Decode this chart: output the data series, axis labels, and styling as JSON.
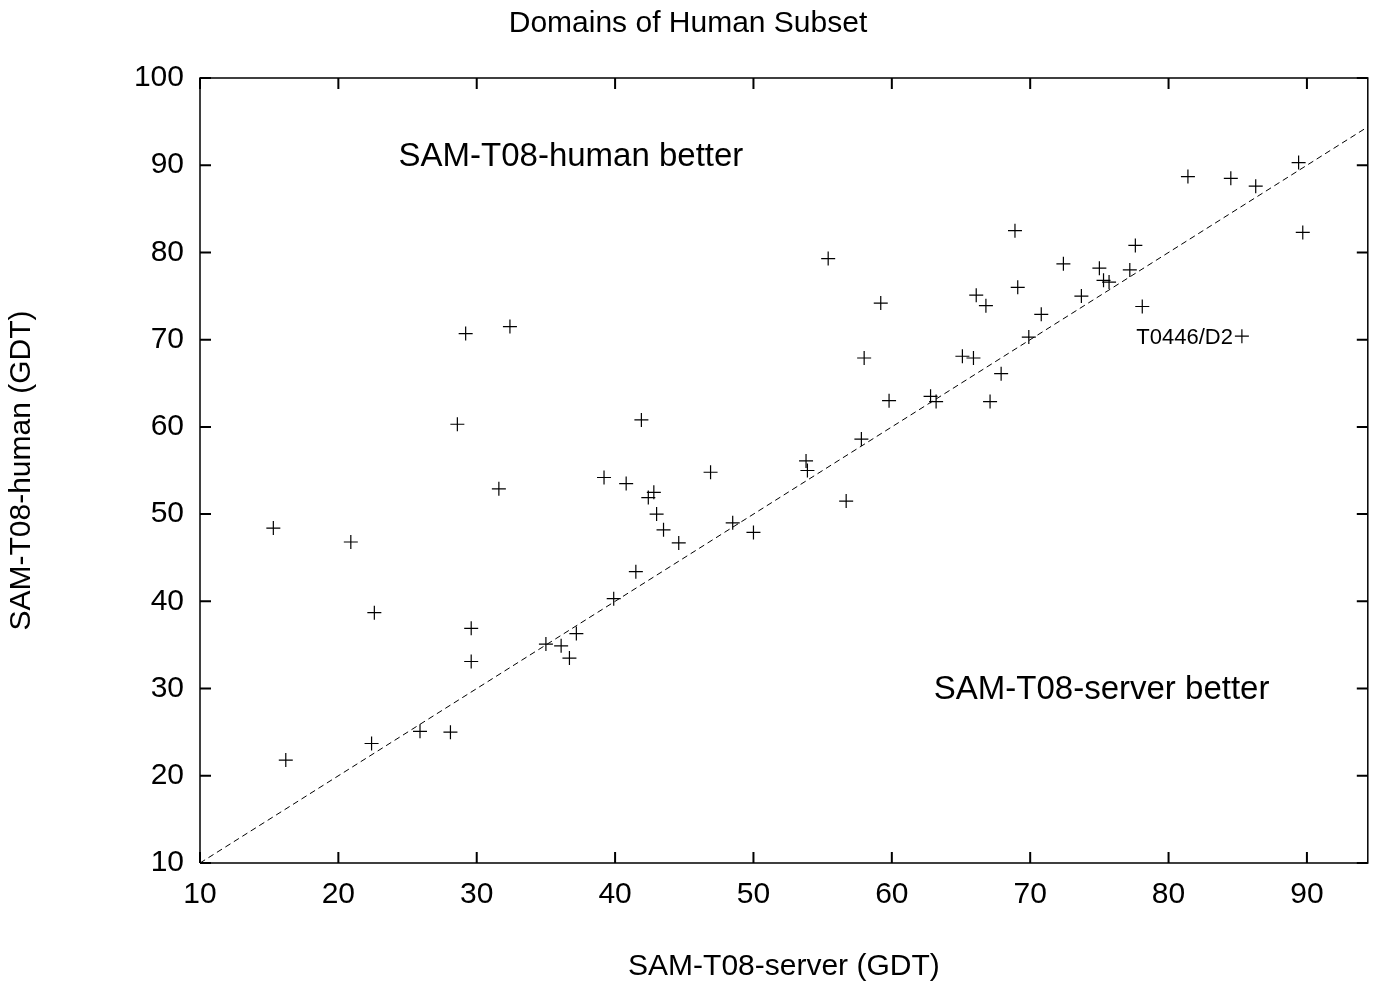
{
  "chart_data": {
    "type": "scatter",
    "title": "Domains of Human Subset",
    "xlabel": "SAM-T08-server (GDT)",
    "ylabel": "SAM-T08-human (GDT)",
    "xlim": [
      10,
      94.4
    ],
    "ylim": [
      10,
      100
    ],
    "xticks": [
      10,
      20,
      30,
      40,
      50,
      60,
      70,
      80,
      90
    ],
    "yticks": [
      10,
      20,
      30,
      40,
      50,
      60,
      70,
      80,
      90,
      100
    ],
    "marker": "cross",
    "legend": false,
    "annotations": [
      "SAM-T08-human better",
      "SAM-T08-server better",
      {
        "text": "T0446/D2",
        "x": 85.3,
        "y": 70.4
      }
    ],
    "series": [
      {
        "type": "scatter",
        "color": "#000000",
        "x": [
          15.3,
          16.2,
          20.9,
          22.6,
          22.4,
          25.9,
          28.1,
          28.6,
          29.2,
          29.6,
          29.6,
          31.6,
          32.4,
          35.0,
          36.1,
          36.7,
          37.2,
          39.2,
          39.9,
          40.8,
          41.5,
          41.9,
          42.4,
          42.8,
          43.0,
          43.5,
          44.6,
          46.9,
          48.5,
          50.0,
          53.8,
          53.9,
          55.4,
          56.7,
          57.8,
          58.0,
          59.2,
          59.8,
          62.8,
          63.2,
          65.1,
          65.9,
          66.1,
          66.8,
          67.1,
          67.9,
          68.9,
          69.1,
          69.9,
          70.8,
          72.4,
          73.7,
          75.0,
          75.3,
          75.7,
          77.2,
          77.6,
          78.1,
          81.4,
          84.5,
          85.3,
          86.3,
          89.4,
          89.7
        ],
        "values": [
          48.4,
          21.8,
          46.8,
          38.7,
          23.7,
          25.1,
          25.0,
          60.3,
          70.7,
          36.9,
          33.1,
          52.9,
          71.5,
          35.1,
          34.9,
          33.5,
          36.3,
          54.2,
          40.3,
          53.5,
          43.4,
          60.8,
          51.9,
          52.5,
          50.0,
          48.2,
          46.7,
          54.8,
          49.0,
          47.9,
          56.1,
          55.0,
          79.3,
          51.5,
          58.6,
          67.9,
          74.2,
          63.0,
          63.5,
          62.9,
          68.1,
          67.9,
          75.1,
          73.9,
          62.9,
          66.1,
          82.5,
          76.0,
          70.3,
          72.9,
          78.7,
          75.0,
          78.2,
          76.8,
          76.6,
          78.0,
          80.8,
          73.8,
          88.7,
          88.5,
          70.4,
          87.6,
          90.3,
          82.3
        ]
      },
      {
        "type": "line",
        "color": "#000000",
        "line_style": "dashed",
        "marker": "none",
        "x": [
          10,
          94.4
        ],
        "values": [
          10,
          94.4
        ]
      }
    ]
  }
}
